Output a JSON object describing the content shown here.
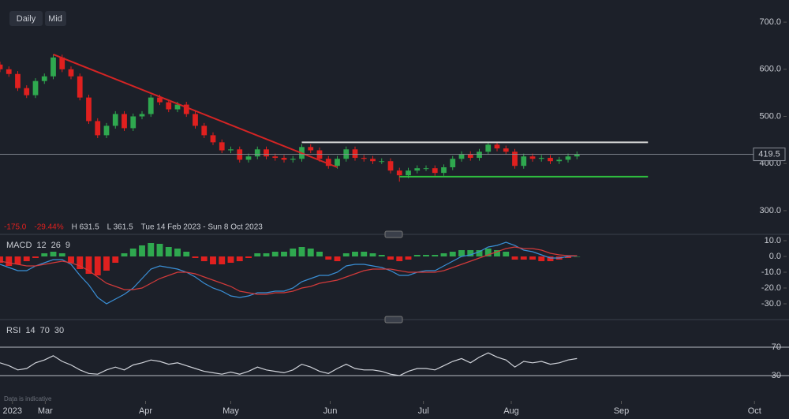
{
  "toolbar": {
    "buttons": [
      "Daily",
      "Mid"
    ]
  },
  "footer_note": "Data is indicative",
  "chart_data": [
    {
      "type": "candlestick",
      "xlim": [
        0,
        88
      ],
      "ylim": [
        253,
        747
      ],
      "yticks": [
        {
          "value": 700,
          "label": "700.0"
        },
        {
          "value": 600,
          "label": "600.0"
        },
        {
          "value": 500,
          "label": "500.0"
        },
        {
          "value": 400,
          "label": "400.0"
        },
        {
          "value": 300,
          "label": "300.0"
        }
      ],
      "up_color": "#2fa84f",
      "down_color": "#e0201f",
      "open": [
        610,
        600,
        590,
        560,
        545,
        575,
        585,
        625,
        600,
        585,
        540,
        490,
        460,
        480,
        505,
        475,
        500,
        505,
        540,
        530,
        515,
        525,
        505,
        480,
        460,
        445,
        428,
        430,
        408,
        415,
        430,
        415,
        412,
        408,
        410,
        435,
        428,
        410,
        395,
        410,
        430,
        412,
        410,
        405,
        405,
        385,
        375,
        385,
        390,
        390,
        380,
        392,
        410,
        420,
        412,
        425,
        440,
        432,
        425,
        395,
        415,
        410,
        412,
        405,
        408,
        415
      ],
      "high": [
        616,
        606,
        596,
        566,
        581,
        591,
        631.5,
        631,
        606,
        591,
        546,
        496,
        486,
        511,
        511,
        506,
        511,
        546,
        546,
        536,
        531,
        531,
        511,
        486,
        466,
        451,
        436,
        436,
        421,
        436,
        436,
        421,
        418,
        416,
        441,
        441,
        434,
        416,
        416,
        436,
        436,
        418,
        416,
        411,
        411,
        391,
        391,
        396,
        396,
        396,
        398,
        416,
        426,
        426,
        431,
        446,
        446,
        438,
        431,
        421,
        421,
        418,
        418,
        414,
        421,
        425.5
      ],
      "low": [
        594,
        584,
        554,
        539,
        539,
        569,
        579,
        594,
        579,
        534,
        484,
        454,
        454,
        474,
        469,
        469,
        494,
        499,
        524,
        509,
        509,
        499,
        474,
        454,
        439,
        422,
        422,
        402,
        402,
        409,
        409,
        406,
        402,
        402,
        404,
        422,
        404,
        389,
        389,
        404,
        406,
        404,
        399,
        399,
        379,
        361.5,
        369,
        379,
        384,
        374,
        374,
        386,
        404,
        406,
        406,
        419,
        426,
        419,
        389,
        389,
        404,
        404,
        399,
        399,
        402,
        409
      ],
      "close": [
        600,
        590,
        560,
        545,
        575,
        585,
        625,
        600,
        585,
        540,
        490,
        460,
        480,
        505,
        475,
        500,
        505,
        540,
        530,
        515,
        525,
        505,
        480,
        460,
        445,
        428,
        430,
        408,
        415,
        430,
        415,
        412,
        408,
        410,
        435,
        428,
        410,
        395,
        410,
        430,
        412,
        410,
        405,
        405,
        385,
        375,
        385,
        390,
        390,
        380,
        392,
        410,
        420,
        412,
        425,
        440,
        432,
        425,
        395,
        415,
        410,
        412,
        405,
        408,
        415,
        419.5
      ],
      "trendlines": [
        {
          "color": "#d42424",
          "points": [
            [
              6,
              631.5
            ],
            [
              38,
              392
            ]
          ]
        },
        {
          "color": "#d8d8d8",
          "points": [
            [
              34,
              445
            ],
            [
              73,
              445
            ]
          ]
        },
        {
          "color": "#2fbf3f",
          "points": [
            [
              45,
              372
            ],
            [
              73,
              372
            ]
          ]
        }
      ],
      "last_value": {
        "value": 419.5,
        "label": "419.5"
      },
      "stats": [
        "-175.0",
        "-29.44%",
        "H 631.5",
        "L 361.5"
      ],
      "stat_colors": [
        "#e0201f",
        "#e0201f",
        "#c9ccd3",
        "#c9ccd3"
      ],
      "date_range": "Tue 14 Feb 2023 - Sun 8 Oct 2023"
    },
    {
      "type": "macd",
      "label": "MACD",
      "params": [
        12,
        26,
        9
      ],
      "xlim": [
        0,
        88
      ],
      "ylim": [
        -38.5,
        12.5
      ],
      "yticks": [
        {
          "value": 10,
          "label": "10.0"
        },
        {
          "value": 0,
          "label": "0.0"
        },
        {
          "value": -10,
          "label": "-10.0"
        },
        {
          "value": -20,
          "label": "-20.0"
        },
        {
          "value": -30,
          "label": "-30.0"
        }
      ],
      "series": [
        {
          "color": "#3a8fd6",
          "values": [
            -5,
            -7,
            -9,
            -9,
            -6,
            -4,
            -2,
            -2,
            -5,
            -12,
            -18,
            -26,
            -30,
            -27,
            -24,
            -20,
            -14,
            -8,
            -6,
            -7,
            -8,
            -10,
            -13,
            -17,
            -20,
            -22,
            -25,
            -26,
            -25,
            -23,
            -23,
            -22,
            -22,
            -20,
            -16,
            -14,
            -12,
            -12,
            -10,
            -6,
            -5,
            -5,
            -6,
            -7,
            -9,
            -12,
            -12,
            -10,
            -9,
            -9,
            -6,
            -3,
            0,
            1,
            3,
            6,
            7,
            9,
            7,
            4,
            3,
            1,
            -1,
            -1,
            0,
            0.5
          ]
        },
        {
          "color": "#d23a3a",
          "values": [
            -3,
            -4,
            -5,
            -6,
            -6,
            -5,
            -4,
            -3,
            -4,
            -6,
            -9,
            -13,
            -17,
            -19,
            -21,
            -21,
            -20,
            -17,
            -14,
            -12,
            -10,
            -10,
            -11,
            -13,
            -15,
            -17,
            -19,
            -22,
            -23,
            -24,
            -24,
            -23,
            -23,
            -22,
            -20,
            -19,
            -17,
            -16,
            -15,
            -13,
            -11,
            -9,
            -8,
            -8,
            -8,
            -9,
            -10,
            -10,
            -10,
            -10,
            -9,
            -7,
            -5,
            -3,
            -1,
            1,
            3,
            5,
            6,
            5,
            5,
            4,
            2,
            1,
            0.5,
            0.5
          ]
        }
      ],
      "histogram": {
        "up_color": "#2fa84f",
        "down_color": "#e0201f",
        "values": [
          -4,
          -6,
          -5,
          -3,
          -1,
          2,
          3,
          2,
          -4,
          -8,
          -11,
          -12,
          -9,
          -4,
          2,
          5,
          7,
          8.5,
          8,
          6,
          5,
          3,
          -1,
          -3,
          -5,
          -5,
          -4,
          -3,
          -1,
          2,
          2,
          3,
          3,
          5,
          6,
          5,
          3,
          -2,
          -3,
          2,
          3,
          3,
          2,
          1,
          -2,
          -3,
          -2,
          1,
          1,
          1,
          2,
          3,
          4,
          4,
          4,
          5,
          4,
          3,
          -2,
          -2,
          -2,
          -3,
          -3,
          -2,
          -1,
          0
        ]
      }
    },
    {
      "type": "line",
      "label": "RSI",
      "params": [
        14,
        70,
        30
      ],
      "xlim": [
        0,
        88
      ],
      "ylim": [
        -2.2,
        105.6
      ],
      "yticks": [
        70,
        30
      ],
      "grid": true,
      "grid_color": "#b8bcc4",
      "series": [
        {
          "color": "#d0d3da",
          "values": [
            48,
            44,
            38,
            40,
            48,
            52,
            58,
            50,
            45,
            38,
            33,
            32,
            38,
            42,
            38,
            45,
            48,
            52,
            50,
            46,
            48,
            44,
            40,
            36,
            34,
            32,
            35,
            32,
            36,
            42,
            38,
            36,
            34,
            38,
            46,
            42,
            36,
            33,
            40,
            46,
            40,
            38,
            38,
            36,
            32,
            30,
            36,
            40,
            40,
            38,
            44,
            50,
            54,
            48,
            56,
            62,
            56,
            52,
            42,
            50,
            48,
            50,
            46,
            48,
            52,
            54
          ]
        }
      ],
      "xticks": [
        {
          "value": 1.4,
          "label": "2023"
        },
        {
          "value": 5.1,
          "label": "Mar"
        },
        {
          "value": 16.4,
          "label": "Apr"
        },
        {
          "value": 26,
          "label": "May"
        },
        {
          "value": 37.2,
          "label": "Jun"
        },
        {
          "value": 47.7,
          "label": "Jul"
        },
        {
          "value": 57.6,
          "label": "Aug"
        },
        {
          "value": 70,
          "label": "Sep"
        },
        {
          "value": 85,
          "label": "Oct"
        }
      ]
    }
  ]
}
